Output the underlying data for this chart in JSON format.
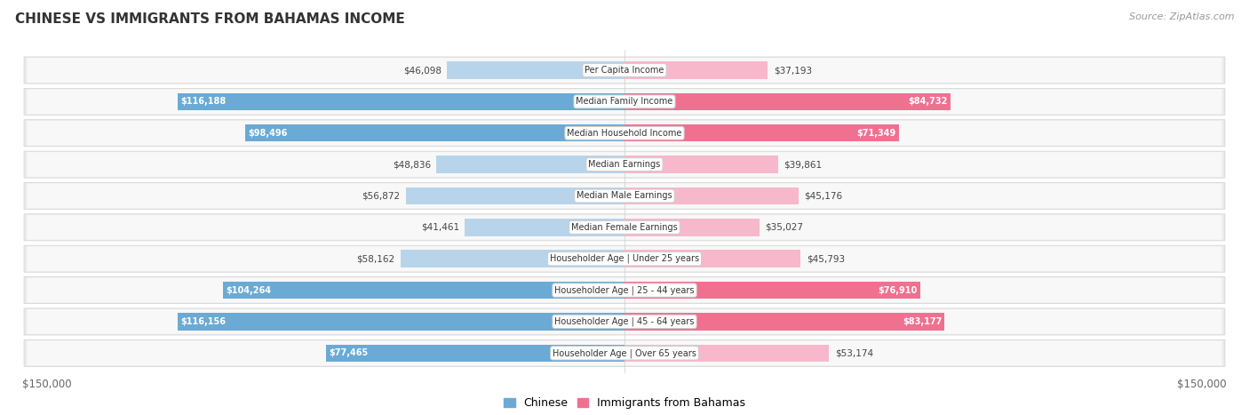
{
  "title": "CHINESE VS IMMIGRANTS FROM BAHAMAS INCOME",
  "source": "Source: ZipAtlas.com",
  "categories": [
    "Per Capita Income",
    "Median Family Income",
    "Median Household Income",
    "Median Earnings",
    "Median Male Earnings",
    "Median Female Earnings",
    "Householder Age | Under 25 years",
    "Householder Age | 25 - 44 years",
    "Householder Age | 45 - 64 years",
    "Householder Age | Over 65 years"
  ],
  "chinese_values": [
    46098,
    116188,
    98496,
    48836,
    56872,
    41461,
    58162,
    104264,
    116156,
    77465
  ],
  "bahamas_values": [
    37193,
    84732,
    71349,
    39861,
    45176,
    35027,
    45793,
    76910,
    83177,
    53174
  ],
  "chinese_labels": [
    "$46,098",
    "$116,188",
    "$98,496",
    "$48,836",
    "$56,872",
    "$41,461",
    "$58,162",
    "$104,264",
    "$116,156",
    "$77,465"
  ],
  "bahamas_labels": [
    "$37,193",
    "$84,732",
    "$71,349",
    "$39,861",
    "$45,176",
    "$35,027",
    "$45,793",
    "$76,910",
    "$83,177",
    "$53,174"
  ],
  "max_value": 150000,
  "chinese_color_light": "#b8d4ea",
  "chinese_color_dark": "#6aaad4",
  "bahamas_color_light": "#f7b8cc",
  "bahamas_color_dark": "#f07090",
  "threshold": 65000,
  "row_bg_color": "#ebebeb",
  "center_label_color": "#444444",
  "axis_label_color": "#888888",
  "title_color": "#333333",
  "source_color": "#999999"
}
